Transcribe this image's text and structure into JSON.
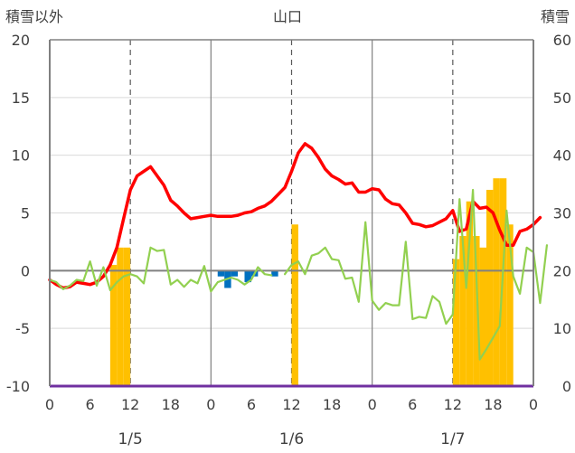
{
  "chart_data": {
    "type": "bar+line",
    "title": "山口",
    "y_left_label": "積雪以外",
    "y_right_label": "積雪",
    "y_left": {
      "min": -10,
      "max": 20,
      "ticks": [
        "20",
        "15",
        "10",
        "5",
        "0",
        "-5",
        "-10"
      ]
    },
    "y_right": {
      "min": 0,
      "max": 60,
      "ticks": [
        "60",
        "50",
        "40",
        "30",
        "20",
        "10",
        "0"
      ]
    },
    "x": {
      "min": 0,
      "max": 72,
      "tick_step": 6,
      "tick_labels": [
        "0",
        "6",
        "12",
        "18",
        "0",
        "6",
        "12",
        "18",
        "0",
        "6",
        "12",
        "18",
        "0"
      ],
      "date_labels": [
        {
          "at": 12,
          "label": "1/5"
        },
        {
          "at": 36,
          "label": "1/6"
        },
        {
          "at": 60,
          "label": "1/7"
        }
      ]
    },
    "colors": {
      "temperature": "#ff0000",
      "secondary_line": "#92d050",
      "snow_depth": "#ffc000",
      "negative_bar": "#0070c0",
      "baseline": "#7030a0",
      "axis": "#808080"
    },
    "series": [
      {
        "type": "line",
        "axis": "left",
        "color": "#ff0000",
        "values": [
          [
            0,
            -0.8
          ],
          [
            1,
            -1.2
          ],
          [
            2,
            -1.5
          ],
          [
            3,
            -1.4
          ],
          [
            4,
            -1.0
          ],
          [
            5,
            -1.1
          ],
          [
            6,
            -1.2
          ],
          [
            7,
            -1.0
          ],
          [
            8,
            -0.5
          ],
          [
            9,
            0.5
          ],
          [
            10,
            2
          ],
          [
            11,
            4.5
          ],
          [
            12,
            7
          ],
          [
            13,
            8.2
          ],
          [
            14,
            8.6
          ],
          [
            15,
            9
          ],
          [
            16,
            8.2
          ],
          [
            17,
            7.4
          ],
          [
            18,
            6.1
          ],
          [
            19,
            5.6
          ],
          [
            20,
            5
          ],
          [
            21,
            4.5
          ],
          [
            22,
            4.6
          ],
          [
            23,
            4.7
          ],
          [
            24,
            4.8
          ],
          [
            25,
            4.7
          ],
          [
            26,
            4.7
          ],
          [
            27,
            4.7
          ],
          [
            28,
            4.8
          ],
          [
            29,
            5
          ],
          [
            30,
            5.1
          ],
          [
            31,
            5.4
          ],
          [
            32,
            5.6
          ],
          [
            33,
            6
          ],
          [
            34,
            6.6
          ],
          [
            35,
            7.2
          ],
          [
            36,
            8.6
          ],
          [
            37,
            10.2
          ],
          [
            38,
            11
          ],
          [
            39,
            10.6
          ],
          [
            40,
            9.8
          ],
          [
            41,
            8.8
          ],
          [
            42,
            8.2
          ],
          [
            43,
            7.9
          ],
          [
            44,
            7.5
          ],
          [
            45,
            7.6
          ],
          [
            46,
            6.8
          ],
          [
            47,
            6.8
          ],
          [
            48,
            7.1
          ],
          [
            49,
            7
          ],
          [
            50,
            6.2
          ],
          [
            51,
            5.8
          ],
          [
            52,
            5.7
          ],
          [
            53,
            5
          ],
          [
            54,
            4.1
          ],
          [
            55,
            4
          ],
          [
            56,
            3.8
          ],
          [
            57,
            3.9
          ],
          [
            58,
            4.2
          ],
          [
            59,
            4.5
          ],
          [
            60,
            5.2
          ],
          [
            61,
            3.4
          ],
          [
            62,
            3.6
          ],
          [
            63,
            6
          ],
          [
            64,
            5.4
          ],
          [
            65,
            5.5
          ],
          [
            66,
            5
          ],
          [
            67,
            3.5
          ],
          [
            68,
            2.2
          ],
          [
            69,
            2.2
          ],
          [
            70,
            3.4
          ],
          [
            71,
            3.6
          ],
          [
            72,
            4
          ],
          [
            73,
            4.6
          ]
        ]
      },
      {
        "type": "line",
        "axis": "left",
        "color": "#92d050",
        "values": [
          [
            0,
            -0.8
          ],
          [
            1,
            -1
          ],
          [
            2,
            -1.6
          ],
          [
            3,
            -1.3
          ],
          [
            4,
            -0.8
          ],
          [
            5,
            -0.9
          ],
          [
            6,
            0.8
          ],
          [
            7,
            -1.3
          ],
          [
            8,
            0.3
          ],
          [
            9,
            -1.7
          ],
          [
            10,
            -1
          ],
          [
            11,
            -0.5
          ],
          [
            12,
            -0.3
          ],
          [
            13,
            -0.5
          ],
          [
            14,
            -1.1
          ],
          [
            15,
            2
          ],
          [
            16,
            1.7
          ],
          [
            17,
            1.8
          ],
          [
            18,
            -1.2
          ],
          [
            19,
            -0.8
          ],
          [
            20,
            -1.4
          ],
          [
            21,
            -0.8
          ],
          [
            22,
            -1.1
          ],
          [
            23,
            0.4
          ],
          [
            24,
            -1.8
          ],
          [
            25,
            -1
          ],
          [
            26,
            -0.8
          ],
          [
            27,
            -0.6
          ],
          [
            28,
            -0.8
          ],
          [
            29,
            -1.2
          ],
          [
            30,
            -0.8
          ],
          [
            31,
            0.3
          ],
          [
            32,
            -0.3
          ],
          [
            33,
            -0.4
          ],
          [
            35,
            -0.3
          ],
          [
            36,
            0.5
          ],
          [
            37,
            0.8
          ],
          [
            38,
            -0.3
          ],
          [
            39,
            1.3
          ],
          [
            40,
            1.5
          ],
          [
            41,
            2
          ],
          [
            42,
            1
          ],
          [
            43,
            0.9
          ],
          [
            44,
            -0.7
          ],
          [
            45,
            -0.6
          ],
          [
            46,
            -2.7
          ],
          [
            47,
            4.2
          ],
          [
            48,
            -2.6
          ],
          [
            49,
            -3.4
          ],
          [
            50,
            -2.8
          ],
          [
            51,
            -3
          ],
          [
            52,
            -3
          ],
          [
            53,
            2.5
          ],
          [
            54,
            -4.2
          ],
          [
            55,
            -4
          ],
          [
            56,
            -4.1
          ],
          [
            57,
            -2.2
          ],
          [
            58,
            -2.7
          ],
          [
            59,
            -4.6
          ],
          [
            60,
            -3.8
          ],
          [
            61,
            6.2
          ],
          [
            62,
            -1.5
          ],
          [
            63,
            7
          ],
          [
            64,
            -7.7
          ],
          [
            65,
            -6.8
          ],
          [
            66,
            -5.8
          ],
          [
            67,
            -4.8
          ],
          [
            68,
            5.2
          ],
          [
            69,
            -0.5
          ],
          [
            70,
            -2
          ],
          [
            71,
            2
          ],
          [
            72,
            1.6
          ],
          [
            73,
            -2.8
          ],
          [
            74,
            2.2
          ]
        ]
      },
      {
        "type": "bar",
        "axis": "right",
        "color": "#ffc000",
        "values": [
          [
            10,
            21
          ],
          [
            11,
            24
          ],
          [
            12,
            24
          ],
          [
            37,
            28
          ],
          [
            61,
            22
          ],
          [
            62,
            26
          ],
          [
            63,
            32
          ],
          [
            64,
            26
          ],
          [
            65,
            24
          ],
          [
            66,
            34
          ],
          [
            67,
            36
          ],
          [
            68,
            36
          ],
          [
            69,
            28
          ]
        ]
      },
      {
        "type": "bar",
        "axis": "left",
        "color": "#0070c0",
        "values": [
          [
            26,
            -0.5
          ],
          [
            27,
            -1.5
          ],
          [
            28,
            -0.5
          ],
          [
            30,
            -1
          ],
          [
            31,
            -0.5
          ],
          [
            34,
            -0.5
          ]
        ]
      }
    ]
  }
}
